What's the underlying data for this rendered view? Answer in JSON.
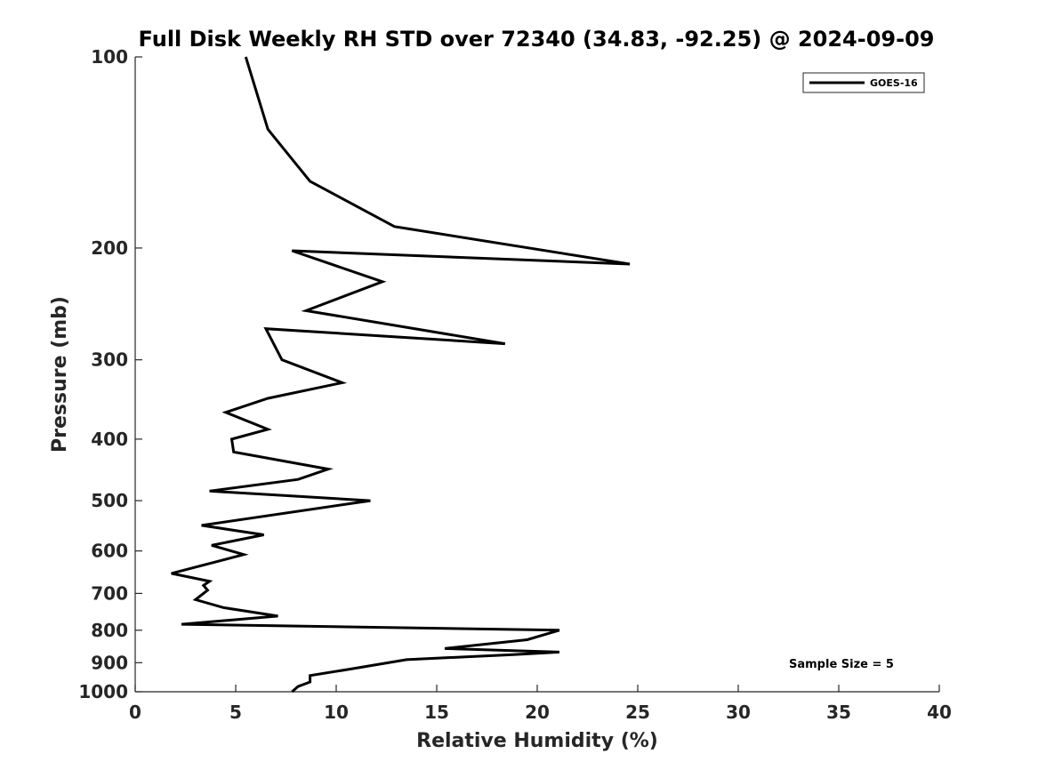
{
  "chart_data": {
    "type": "line",
    "title": "Full Disk Weekly RH STD over 72340 (34.83, -92.25) @ 2024-09-09",
    "xlabel": "Relative Humidity (%)",
    "ylabel": "Pressure (mb)",
    "xlim": [
      0,
      40
    ],
    "ylim": [
      100,
      1000
    ],
    "y_scale": "log",
    "y_reversed": true,
    "xticks": [
      0,
      5,
      10,
      15,
      20,
      25,
      30,
      35,
      40
    ],
    "yticks": [
      100,
      200,
      300,
      400,
      500,
      600,
      700,
      800,
      900,
      1000
    ],
    "grid": false,
    "legend_position": "top-right",
    "annotation": "Sample Size = 5",
    "series": [
      {
        "name": "GOES-16",
        "color": "#000000",
        "x": [
          5.5,
          6.6,
          8.7,
          12.9,
          24.6,
          7.8,
          12.3,
          8.5,
          18.4,
          6.5,
          7.3,
          10.3,
          6.6,
          4.5,
          6.6,
          4.8,
          4.9,
          9.6,
          8.1,
          3.7,
          11.7,
          3.3,
          6.4,
          3.8,
          5.4,
          4.2,
          1.8,
          3.7,
          3.4,
          3.6,
          3.0,
          4.4,
          7.1,
          2.3,
          21.1,
          19.5,
          15.4,
          21.1,
          18.8,
          13.5,
          10.7,
          8.7,
          8.7,
          8.1,
          7.8
        ],
        "y": [
          100,
          130,
          157,
          185,
          212,
          202,
          226,
          251,
          283,
          268,
          300,
          326,
          345,
          363,
          386,
          400,
          419,
          446,
          463,
          483,
          500,
          547,
          566,
          588,
          608,
          622,
          651,
          670,
          680,
          692,
          716,
          737,
          760,
          783,
          800,
          828,
          855,
          866,
          874,
          890,
          921,
          943,
          965,
          981,
          1000
        ]
      }
    ]
  }
}
